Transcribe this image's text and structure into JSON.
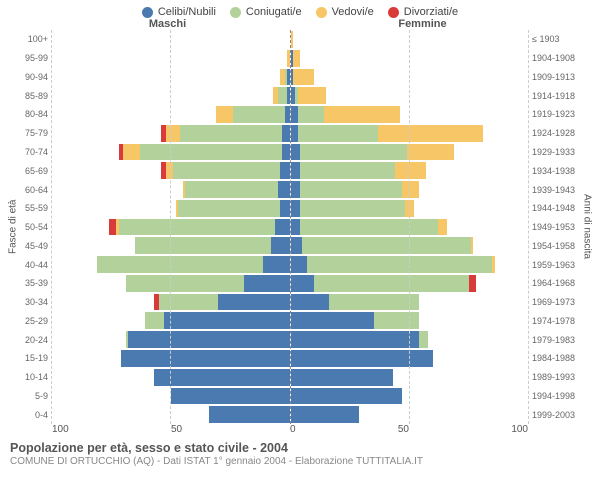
{
  "chart": {
    "type": "diverging-stacked-bar (population pyramid)",
    "legend": [
      {
        "label": "Celibi/Nubili",
        "color": "#4a7ab0"
      },
      {
        "label": "Coniugati/e",
        "color": "#b3d19b"
      },
      {
        "label": "Vedovi/e",
        "color": "#f7c666"
      },
      {
        "label": "Divorziati/e",
        "color": "#d93b3b"
      }
    ],
    "side_headers": {
      "left": "Maschi",
      "right": "Femmine"
    },
    "y_left_title": "Fasce di età",
    "y_right_title": "Anni di nascita",
    "x_max": 100,
    "x_ticks_left": [
      "100",
      "50",
      "0"
    ],
    "x_ticks_right": [
      "0",
      "50",
      "100"
    ],
    "grid_percents": [
      50,
      100
    ],
    "background_color": "#ffffff",
    "grid_color": "#cccccc",
    "axis_color": "#888888",
    "age_labels": [
      "100+",
      "95-99",
      "90-94",
      "85-89",
      "80-84",
      "75-79",
      "70-74",
      "65-69",
      "60-64",
      "55-59",
      "50-54",
      "45-49",
      "40-44",
      "35-39",
      "30-34",
      "25-29",
      "20-24",
      "15-19",
      "10-14",
      "5-9",
      "0-4"
    ],
    "birth_labels": [
      "≤ 1903",
      "1904-1908",
      "1909-1913",
      "1914-1918",
      "1919-1923",
      "1924-1928",
      "1929-1933",
      "1934-1938",
      "1939-1943",
      "1944-1948",
      "1949-1953",
      "1954-1958",
      "1959-1963",
      "1964-1968",
      "1969-1973",
      "1974-1978",
      "1979-1983",
      "1984-1988",
      "1989-1993",
      "1994-1998",
      "1999-2003"
    ],
    "maschi": [
      {
        "celibi": 0,
        "coniugati": 0,
        "vedovi": 0,
        "divorziati": 0
      },
      {
        "celibi": 0,
        "coniugati": 0,
        "vedovi": 1,
        "divorziati": 0
      },
      {
        "celibi": 1,
        "coniugati": 1,
        "vedovi": 2,
        "divorziati": 0
      },
      {
        "celibi": 1,
        "coniugati": 4,
        "vedovi": 2,
        "divorziati": 0
      },
      {
        "celibi": 2,
        "coniugati": 22,
        "vedovi": 7,
        "divorziati": 0
      },
      {
        "celibi": 3,
        "coniugati": 43,
        "vedovi": 6,
        "divorziati": 2
      },
      {
        "celibi": 3,
        "coniugati": 60,
        "vedovi": 7,
        "divorziati": 2
      },
      {
        "celibi": 4,
        "coniugati": 45,
        "vedovi": 3,
        "divorziati": 2
      },
      {
        "celibi": 5,
        "coniugati": 39,
        "vedovi": 1,
        "divorziati": 0
      },
      {
        "celibi": 4,
        "coniugati": 43,
        "vedovi": 1,
        "divorziati": 0
      },
      {
        "celibi": 6,
        "coniugati": 66,
        "vedovi": 1,
        "divorziati": 3
      },
      {
        "celibi": 8,
        "coniugati": 57,
        "vedovi": 0,
        "divorziati": 0
      },
      {
        "celibi": 11,
        "coniugati": 70,
        "vedovi": 0,
        "divorziati": 0
      },
      {
        "celibi": 19,
        "coniugati": 50,
        "vedovi": 0,
        "divorziati": 0
      },
      {
        "celibi": 30,
        "coniugati": 25,
        "vedovi": 0,
        "divorziati": 2
      },
      {
        "celibi": 53,
        "coniugati": 8,
        "vedovi": 0,
        "divorziati": 0
      },
      {
        "celibi": 68,
        "coniugati": 1,
        "vedovi": 0,
        "divorziati": 0
      },
      {
        "celibi": 71,
        "coniugati": 0,
        "vedovi": 0,
        "divorziati": 0
      },
      {
        "celibi": 57,
        "coniugati": 0,
        "vedovi": 0,
        "divorziati": 0
      },
      {
        "celibi": 50,
        "coniugati": 0,
        "vedovi": 0,
        "divorziati": 0
      },
      {
        "celibi": 34,
        "coniugati": 0,
        "vedovi": 0,
        "divorziati": 0
      }
    ],
    "femmine": [
      {
        "celibi": 0,
        "coniugati": 0,
        "vedovi": 1,
        "divorziati": 0
      },
      {
        "celibi": 1,
        "coniugati": 0,
        "vedovi": 3,
        "divorziati": 0
      },
      {
        "celibi": 1,
        "coniugati": 0,
        "vedovi": 9,
        "divorziati": 0
      },
      {
        "celibi": 2,
        "coniugati": 1,
        "vedovi": 12,
        "divorziati": 0
      },
      {
        "celibi": 3,
        "coniugati": 11,
        "vedovi": 32,
        "divorziati": 0
      },
      {
        "celibi": 3,
        "coniugati": 34,
        "vedovi": 44,
        "divorziati": 0
      },
      {
        "celibi": 4,
        "coniugati": 45,
        "vedovi": 20,
        "divorziati": 0
      },
      {
        "celibi": 4,
        "coniugati": 40,
        "vedovi": 13,
        "divorziati": 0
      },
      {
        "celibi": 4,
        "coniugati": 43,
        "vedovi": 7,
        "divorziati": 0
      },
      {
        "celibi": 4,
        "coniugati": 44,
        "vedovi": 4,
        "divorziati": 0
      },
      {
        "celibi": 4,
        "coniugati": 58,
        "vedovi": 4,
        "divorziati": 0
      },
      {
        "celibi": 5,
        "coniugati": 71,
        "vedovi": 1,
        "divorziati": 0
      },
      {
        "celibi": 7,
        "coniugati": 78,
        "vedovi": 1,
        "divorziati": 0
      },
      {
        "celibi": 10,
        "coniugati": 65,
        "vedovi": 0,
        "divorziati": 3
      },
      {
        "celibi": 16,
        "coniugati": 38,
        "vedovi": 0,
        "divorziati": 0
      },
      {
        "celibi": 35,
        "coniugati": 19,
        "vedovi": 0,
        "divorziati": 0
      },
      {
        "celibi": 54,
        "coniugati": 4,
        "vedovi": 0,
        "divorziati": 0
      },
      {
        "celibi": 60,
        "coniugati": 0,
        "vedovi": 0,
        "divorziati": 0
      },
      {
        "celibi": 43,
        "coniugati": 0,
        "vedovi": 0,
        "divorziati": 0
      },
      {
        "celibi": 47,
        "coniugati": 0,
        "vedovi": 0,
        "divorziati": 0
      },
      {
        "celibi": 29,
        "coniugati": 0,
        "vedovi": 0,
        "divorziati": 0
      }
    ]
  },
  "footer": {
    "title": "Popolazione per età, sesso e stato civile - 2004",
    "subtitle": "COMUNE DI ORTUCCHIO (AQ) - Dati ISTAT 1° gennaio 2004 - Elaborazione TUTTITALIA.IT"
  }
}
